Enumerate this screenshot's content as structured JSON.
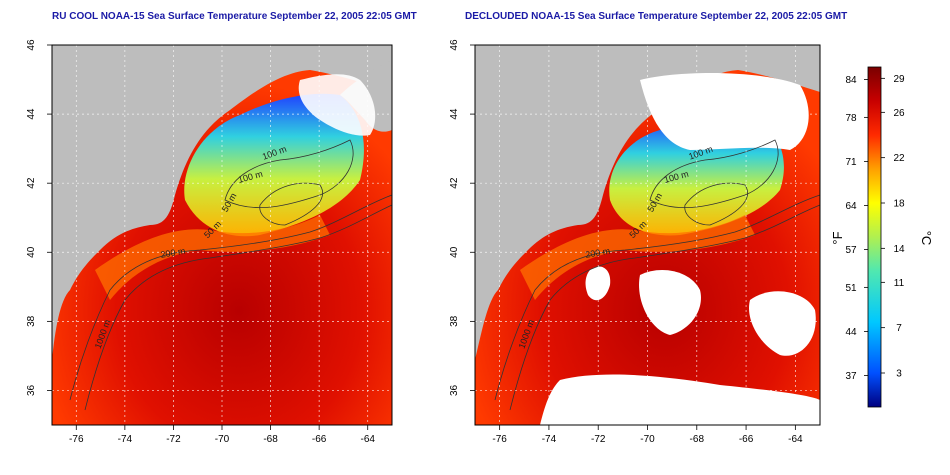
{
  "panels": [
    {
      "title": "RU COOL NOAA-15 Sea Surface Temperature September 22, 2005 22:05 GMT"
    },
    {
      "title": "DECLOUDED NOAA-15 Sea Surface Temperature September 22, 2005 22:05 GMT"
    }
  ],
  "chart_data": {
    "type": "heatmap",
    "xaxis": {
      "ticks": [
        "-76",
        "-74",
        "-72",
        "-70",
        "-68",
        "-66",
        "-64"
      ],
      "range": [
        -77,
        -63
      ]
    },
    "yaxis": {
      "ticks": [
        "36",
        "38",
        "40",
        "42",
        "44",
        "46"
      ],
      "range": [
        35,
        46
      ]
    },
    "contour_labels": [
      "100 m",
      "100 m",
      "50 m",
      "50 m",
      "200 m",
      "1000 m"
    ],
    "colorbar": {
      "fahrenheit": [
        "84",
        "78",
        "71",
        "64",
        "57",
        "51",
        "44",
        "37"
      ],
      "celsius": [
        "29",
        "26",
        "22",
        "18",
        "14",
        "11",
        "7",
        "3"
      ],
      "label_f": "°F",
      "label_c": "°C",
      "range_c": [
        0,
        30
      ],
      "colors": [
        "#000080",
        "#0060ff",
        "#00c0ff",
        "#40e0c0",
        "#a0f060",
        "#ffff00",
        "#ffa000",
        "#ff3000",
        "#c00000",
        "#800000"
      ]
    },
    "grid": true,
    "land_color": "#bdbdbd",
    "cloud_color": "#ffffff"
  }
}
